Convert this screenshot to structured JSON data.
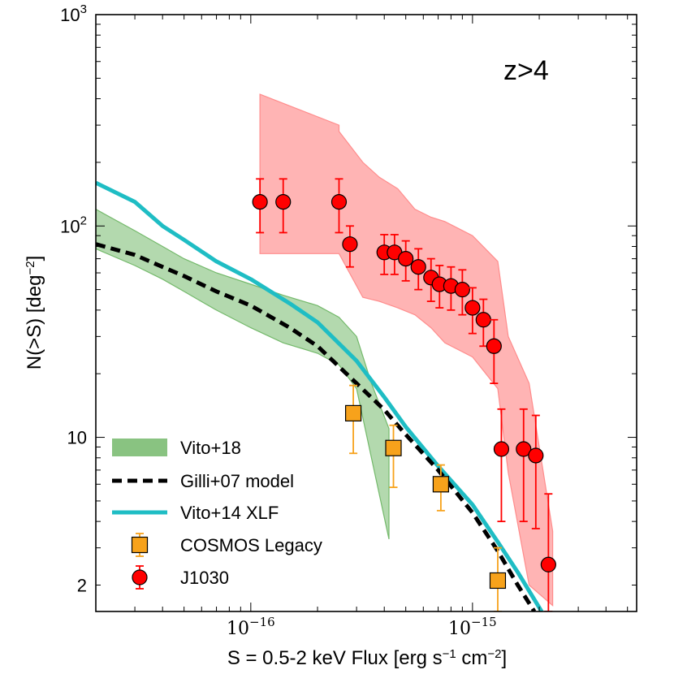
{
  "chart_data": {
    "type": "scatter",
    "annotation": "z>4",
    "xlabel": "S = 0.5-2 keV Flux [erg s$^{-1}$ cm$^{-2}$]",
    "ylabel": "N(>S) [deg$^{-2}$]",
    "xscale": "log",
    "yscale": "log",
    "xlim": [
      2e-17,
      5.5e-15
    ],
    "ylim": [
      1.5,
      1000
    ],
    "x_ticks": [
      {
        "value": 1e-16,
        "base": "10",
        "exp": "−16"
      },
      {
        "value": 1e-15,
        "base": "10",
        "exp": "−15"
      }
    ],
    "y_ticks": [
      {
        "value": 2,
        "label": "2",
        "base": "",
        "exp": ""
      },
      {
        "value": 10,
        "label": "10",
        "base": "",
        "exp": ""
      },
      {
        "value": 100,
        "label": "",
        "base": "10",
        "exp": "2"
      },
      {
        "value": 1000,
        "label": "",
        "base": "10",
        "exp": "3"
      }
    ],
    "grid": false,
    "legend_position": "lower-left",
    "series": [
      {
        "name": "Vito+18",
        "kind": "band",
        "color": "#74b96b",
        "opacity": 0.55,
        "x": [
          2e-17,
          3e-17,
          4e-17,
          5e-17,
          7e-17,
          1e-16,
          1.4e-16,
          2e-16,
          2.5e-16,
          3e-16,
          3.5e-16,
          4.2e-16
        ],
        "upper": [
          120,
          95,
          80,
          70,
          60,
          53,
          47,
          42,
          37,
          30,
          18,
          11
        ],
        "lower": [
          78,
          65,
          56,
          49,
          40,
          33,
          28,
          25,
          22,
          17,
          8,
          3.3
        ]
      },
      {
        "name": "Gilli+07 model",
        "kind": "line",
        "color": "#000000",
        "dash": true,
        "x": [
          2e-17,
          3e-17,
          4e-17,
          5e-17,
          7e-17,
          1e-16,
          1.5e-16,
          2e-16,
          3e-16,
          4e-16,
          5e-16,
          7e-16,
          1e-15,
          1.3e-15,
          1.6e-15,
          1.9e-15
        ],
        "y": [
          82,
          73,
          64,
          58,
          49,
          42,
          33,
          27,
          18,
          13.5,
          10.3,
          7.0,
          4.4,
          2.9,
          2.0,
          1.5
        ]
      },
      {
        "name": "Vito+14 XLF",
        "kind": "line",
        "color": "#1fbdc4",
        "dash": false,
        "x": [
          2e-17,
          3e-17,
          4e-17,
          5e-17,
          7e-17,
          1e-16,
          1.5e-16,
          2e-16,
          3e-16,
          4e-16,
          5e-16,
          7e-16,
          1e-15,
          1.3e-15,
          1.6e-15,
          2.05e-15
        ],
        "y": [
          160,
          130,
          100,
          86,
          68,
          56,
          43,
          35,
          23,
          15.5,
          11.2,
          7.3,
          4.8,
          3.2,
          2.3,
          1.5
        ]
      },
      {
        "name": "COSMOS Legacy",
        "kind": "points",
        "marker": "square",
        "color": "#f7a21b",
        "x": [
          2.9e-16,
          4.4e-16,
          7.2e-16,
          1.3e-15
        ],
        "y": [
          13,
          8.9,
          6.0,
          2.1
        ],
        "yerr_low": [
          4.6,
          3.1,
          1.5,
          0.6
        ],
        "yerr_high": [
          4.6,
          2.5,
          1.4,
          0.9
        ]
      },
      {
        "name": "J1030",
        "kind": "points",
        "marker": "circle",
        "color": "#ff0000",
        "x": [
          1.1e-16,
          1.4e-16,
          2.5e-16,
          2.8e-16,
          4e-16,
          4.45e-16,
          5e-16,
          5.7e-16,
          6.5e-16,
          7.1e-16,
          8e-16,
          9e-16,
          1e-15,
          1.12e-15,
          1.25e-15,
          1.35e-15,
          1.7e-15,
          1.93e-15,
          2.2e-15
        ],
        "y": [
          130,
          130,
          130,
          82,
          75,
          75,
          70,
          64,
          57,
          53,
          52,
          50,
          41,
          36,
          27,
          8.8,
          8.8,
          8.2,
          2.5
        ],
        "yerr_low": [
          37,
          37,
          37,
          18,
          16,
          16,
          15,
          14,
          13,
          12,
          12,
          12,
          10,
          9,
          9,
          4.8,
          4.8,
          4.5,
          1.0
        ],
        "yerr_high": [
          37,
          37,
          37,
          18,
          16,
          16,
          15,
          14,
          13,
          12,
          12,
          12,
          10,
          9,
          9,
          4.8,
          4.8,
          4.5,
          2.9
        ]
      },
      {
        "name": "J1030 band",
        "kind": "band",
        "legend": false,
        "color": "#ff8c8c",
        "opacity": 0.65,
        "x": [
          1.1e-16,
          2.5e-16,
          2.5e-16,
          3.2e-16,
          3.8e-16,
          4.6e-16,
          5.5e-16,
          6.5e-16,
          7.5e-16,
          1e-15,
          1.3e-15,
          1.45e-15,
          1.8e-15,
          2.3e-15
        ],
        "upper": [
          420,
          300,
          280,
          200,
          170,
          150,
          120,
          110,
          105,
          90,
          68,
          30,
          18,
          3.6
        ],
        "lower": [
          74,
          74,
          74,
          46,
          44,
          41,
          38,
          33,
          28,
          24,
          17,
          6.8,
          2.0,
          1.6
        ]
      }
    ]
  }
}
